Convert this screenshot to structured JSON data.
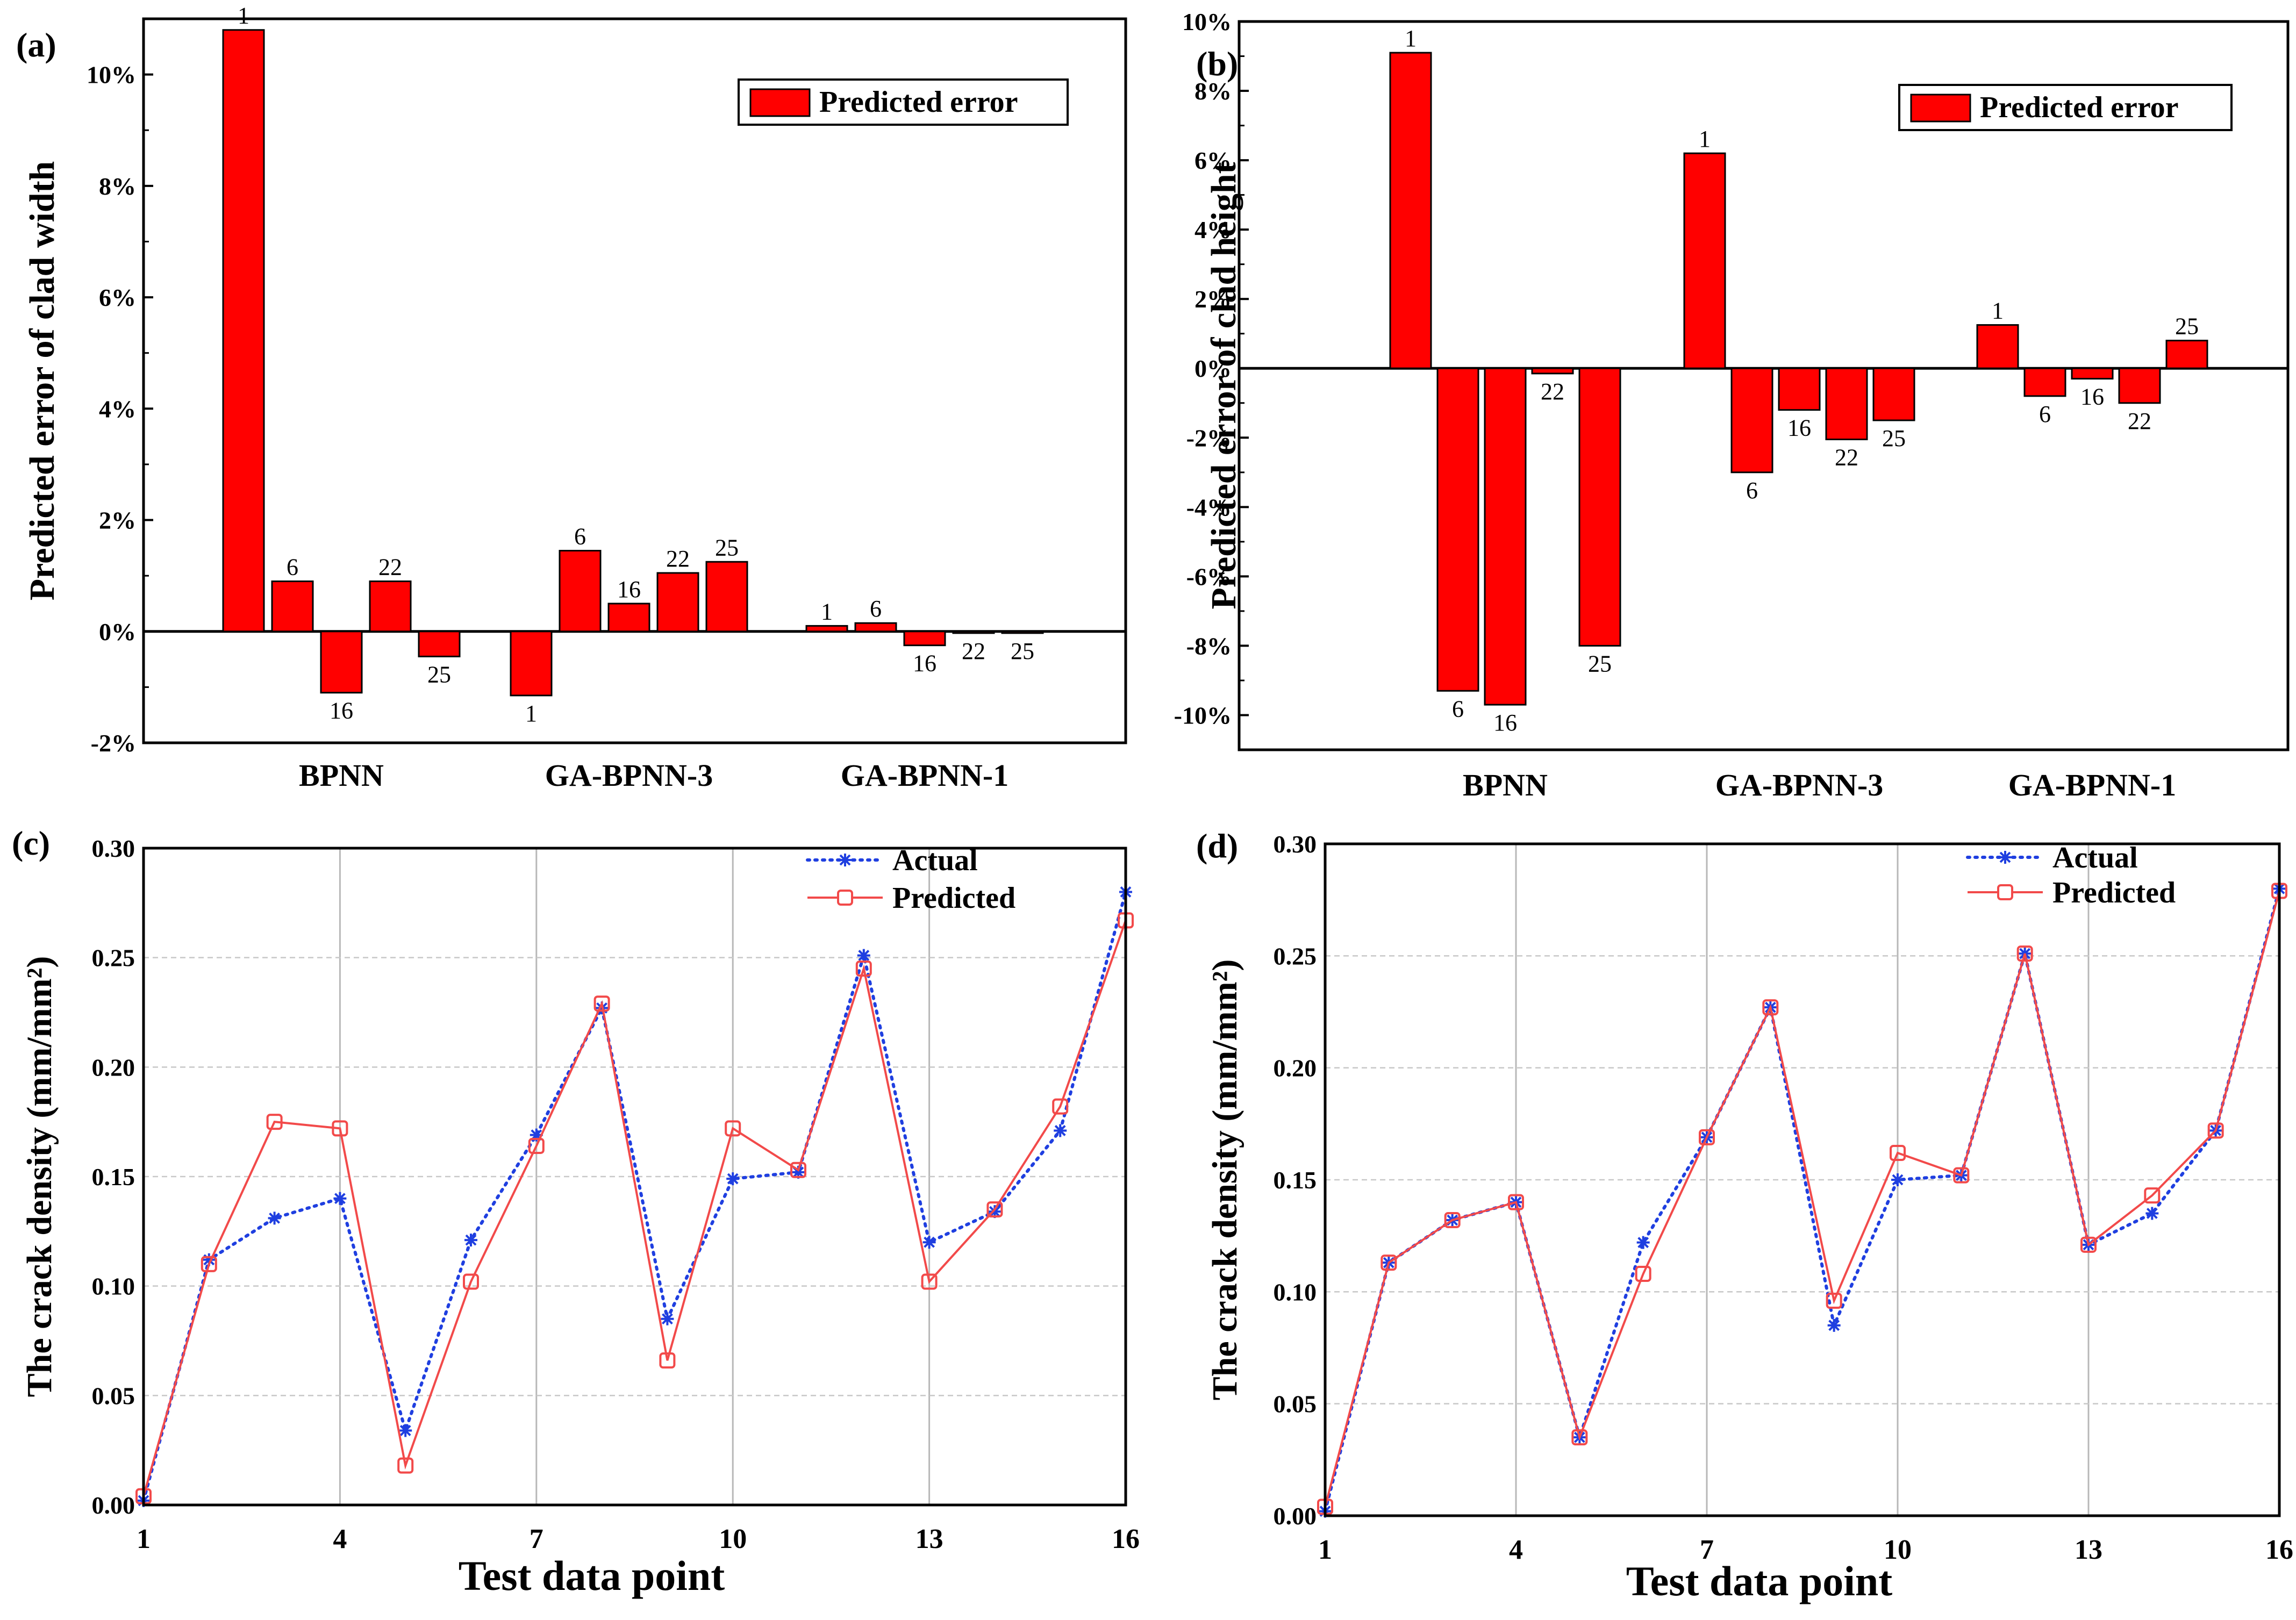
{
  "chart_data": [
    {
      "id": "a",
      "type": "bar",
      "panel_label": "(a)",
      "ylabel": "Predicted error of clad width",
      "ylim": [
        -2,
        11
      ],
      "yticks": [
        -2,
        0,
        2,
        4,
        6,
        8,
        10
      ],
      "ytick_labels": [
        "-2%",
        "0%",
        "2%",
        "4%",
        "6%",
        "8%",
        "10%"
      ],
      "legend": "Predicted error",
      "legend_position": "top-right",
      "groups": [
        {
          "name": "BPNN",
          "bars": [
            {
              "label": "1",
              "value": 10.8
            },
            {
              "label": "6",
              "value": 0.9
            },
            {
              "label": "16",
              "value": -1.1
            },
            {
              "label": "22",
              "value": 0.9
            },
            {
              "label": "25",
              "value": -0.45
            }
          ]
        },
        {
          "name": "GA-BPNN-3",
          "bars": [
            {
              "label": "1",
              "value": -1.15
            },
            {
              "label": "6",
              "value": 1.45
            },
            {
              "label": "16",
              "value": 0.5
            },
            {
              "label": "22",
              "value": 1.05
            },
            {
              "label": "25",
              "value": 1.25
            }
          ]
        },
        {
          "name": "GA-BPNN-1",
          "bars": [
            {
              "label": "1",
              "value": 0.1
            },
            {
              "label": "6",
              "value": 0.15
            },
            {
              "label": "16",
              "value": -0.25
            },
            {
              "label": "22",
              "value": -0.03
            },
            {
              "label": "25",
              "value": -0.03
            }
          ]
        }
      ]
    },
    {
      "id": "b",
      "type": "bar",
      "panel_label": "(b)",
      "ylabel": "Predicted error of clad height",
      "ylim": [
        -11,
        10
      ],
      "yticks": [
        -10,
        -8,
        -6,
        -4,
        -2,
        0,
        2,
        4,
        6,
        8,
        10
      ],
      "ytick_labels": [
        "-10%",
        "-8%",
        "-6%",
        "-4%",
        "-2%",
        "0%",
        "2%",
        "4%",
        "6%",
        "8%",
        "10%"
      ],
      "legend": "Predicted error",
      "legend_position": "top-right",
      "groups": [
        {
          "name": "BPNN",
          "bars": [
            {
              "label": "1",
              "value": 9.1
            },
            {
              "label": "6",
              "value": -9.3
            },
            {
              "label": "16",
              "value": -9.7
            },
            {
              "label": "22",
              "value": -0.15
            },
            {
              "label": "25",
              "value": -8.0
            }
          ]
        },
        {
          "name": "GA-BPNN-3",
          "bars": [
            {
              "label": "1",
              "value": 6.2
            },
            {
              "label": "6",
              "value": -3.0
            },
            {
              "label": "16",
              "value": -1.2
            },
            {
              "label": "22",
              "value": -2.05
            },
            {
              "label": "25",
              "value": -1.5
            }
          ]
        },
        {
          "name": "GA-BPNN-1",
          "bars": [
            {
              "label": "1",
              "value": 1.25
            },
            {
              "label": "6",
              "value": -0.8
            },
            {
              "label": "16",
              "value": -0.3
            },
            {
              "label": "22",
              "value": -1.0
            },
            {
              "label": "25",
              "value": 0.8
            }
          ]
        }
      ]
    },
    {
      "id": "c",
      "type": "line",
      "panel_label": "(c)",
      "xlabel": "Test data point",
      "ylabel": "The crack density (mm/mm²)",
      "xlim": [
        1,
        16
      ],
      "ylim": [
        0,
        0.3
      ],
      "xticks": [
        1,
        4,
        7,
        10,
        13,
        16
      ],
      "yticks": [
        0,
        0.05,
        0.1,
        0.15,
        0.2,
        0.25,
        0.3
      ],
      "ytick_labels": [
        "0.00",
        "0.05",
        "0.10",
        "0.15",
        "0.20",
        "0.25",
        "0.30"
      ],
      "grid": true,
      "legend_position": "top-right",
      "x": [
        1,
        2,
        3,
        4,
        5,
        6,
        7,
        8,
        9,
        10,
        11,
        12,
        13,
        14,
        15,
        16
      ],
      "series": [
        {
          "name": "Actual",
          "color": "#1f3fe0",
          "marker": "asterisk",
          "style": "dotted",
          "values": [
            0.002,
            0.112,
            0.131,
            0.14,
            0.034,
            0.121,
            0.169,
            0.227,
            0.085,
            0.149,
            0.152,
            0.251,
            0.12,
            0.134,
            0.171,
            0.28
          ]
        },
        {
          "name": "Predicted",
          "color": "#f24a4a",
          "marker": "square",
          "style": "solid",
          "values": [
            0.004,
            0.11,
            0.175,
            0.172,
            0.018,
            0.102,
            0.164,
            0.229,
            0.066,
            0.172,
            0.153,
            0.245,
            0.102,
            0.135,
            0.182,
            0.267
          ]
        }
      ]
    },
    {
      "id": "d",
      "type": "line",
      "panel_label": "(d)",
      "xlabel": "Test data point",
      "ylabel": "The crack density (mm/mm²)",
      "xlim": [
        1,
        16
      ],
      "ylim": [
        0,
        0.3
      ],
      "xticks": [
        1,
        4,
        7,
        10,
        13,
        16
      ],
      "yticks": [
        0,
        0.05,
        0.1,
        0.15,
        0.2,
        0.25,
        0.3
      ],
      "ytick_labels": [
        "0.00",
        "0.05",
        "0.10",
        "0.15",
        "0.20",
        "0.25",
        "0.30"
      ],
      "grid": true,
      "legend_position": "top-right",
      "x": [
        1,
        2,
        3,
        4,
        5,
        6,
        7,
        8,
        9,
        10,
        11,
        12,
        13,
        14,
        15,
        16
      ],
      "series": [
        {
          "name": "Actual",
          "color": "#1f3fe0",
          "marker": "asterisk",
          "style": "dotted",
          "values": [
            0.002,
            0.113,
            0.132,
            0.14,
            0.035,
            0.122,
            0.169,
            0.227,
            0.085,
            0.15,
            0.152,
            0.251,
            0.121,
            0.135,
            0.172,
            0.28
          ]
        },
        {
          "name": "Predicted",
          "color": "#f24a4a",
          "marker": "square",
          "style": "solid",
          "values": [
            0.004,
            0.113,
            0.132,
            0.14,
            0.035,
            0.108,
            0.169,
            0.227,
            0.096,
            0.162,
            0.152,
            0.251,
            0.121,
            0.143,
            0.172,
            0.279
          ]
        }
      ]
    }
  ]
}
